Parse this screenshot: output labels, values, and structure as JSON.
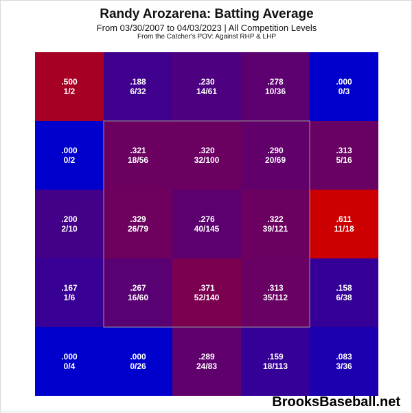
{
  "header": {
    "title": "Randy Arozarena: Batting Average",
    "subtitle": "From 03/30/2007 to 04/03/2023 | All Competition Levels",
    "subtitle2": "From the Catcher's POV:   Against RHP & LHP"
  },
  "watermark": "BrooksBaseball.net",
  "colors": {
    "low": "#0000cc",
    "high": "#cc0000",
    "strike_zone_border": "#999999",
    "text": "#ffffff"
  },
  "chart_data": {
    "type": "heatmap",
    "rows": 5,
    "cols": 5,
    "value_range": [
      0,
      0.611
    ],
    "strike_zone": {
      "row_start": 1,
      "row_end": 3,
      "col_start": 1,
      "col_end": 3
    },
    "cells": [
      [
        {
          "avg": ".500",
          "ratio": "1/2",
          "value": 0.5
        },
        {
          "avg": ".188",
          "ratio": "6/32",
          "value": 0.188
        },
        {
          "avg": ".230",
          "ratio": "14/61",
          "value": 0.23
        },
        {
          "avg": ".278",
          "ratio": "10/36",
          "value": 0.278
        },
        {
          "avg": ".000",
          "ratio": "0/3",
          "value": 0.0
        }
      ],
      [
        {
          "avg": ".000",
          "ratio": "0/2",
          "value": 0.0
        },
        {
          "avg": ".321",
          "ratio": "18/56",
          "value": 0.321
        },
        {
          "avg": ".320",
          "ratio": "32/100",
          "value": 0.32
        },
        {
          "avg": ".290",
          "ratio": "20/69",
          "value": 0.29
        },
        {
          "avg": ".313",
          "ratio": "5/16",
          "value": 0.313
        }
      ],
      [
        {
          "avg": ".200",
          "ratio": "2/10",
          "value": 0.2
        },
        {
          "avg": ".329",
          "ratio": "26/79",
          "value": 0.329
        },
        {
          "avg": ".276",
          "ratio": "40/145",
          "value": 0.276
        },
        {
          "avg": ".322",
          "ratio": "39/121",
          "value": 0.322
        },
        {
          "avg": ".611",
          "ratio": "11/18",
          "value": 0.611
        }
      ],
      [
        {
          "avg": ".167",
          "ratio": "1/6",
          "value": 0.167
        },
        {
          "avg": ".267",
          "ratio": "16/60",
          "value": 0.267
        },
        {
          "avg": ".371",
          "ratio": "52/140",
          "value": 0.371
        },
        {
          "avg": ".313",
          "ratio": "35/112",
          "value": 0.313
        },
        {
          "avg": ".158",
          "ratio": "6/38",
          "value": 0.158
        }
      ],
      [
        {
          "avg": ".000",
          "ratio": "0/4",
          "value": 0.0
        },
        {
          "avg": ".000",
          "ratio": "0/26",
          "value": 0.0
        },
        {
          "avg": ".289",
          "ratio": "24/83",
          "value": 0.289
        },
        {
          "avg": ".159",
          "ratio": "18/113",
          "value": 0.159
        },
        {
          "avg": ".083",
          "ratio": "3/36",
          "value": 0.083
        }
      ]
    ]
  }
}
